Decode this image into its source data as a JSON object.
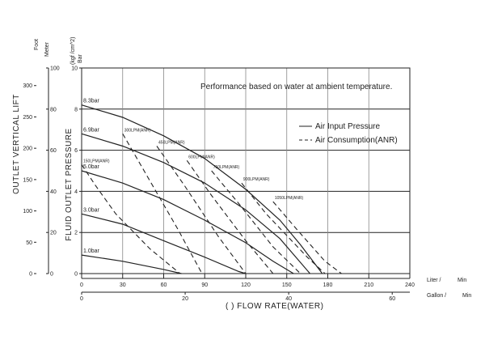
{
  "chart_data": {
    "type": "line",
    "note": "Performance based on water at ambient temperature.",
    "legend": {
      "position": "top-right",
      "entries": [
        {
          "label": "Air Input Pressure",
          "style": "solid"
        },
        {
          "label": "Air Consumption(ANR)",
          "style": "dashed"
        }
      ]
    },
    "xlabel": "(   ) FLOW RATE(WATER)",
    "x_unit_liter": "Liter /",
    "x_unit_liter_min": "Min",
    "x_unit_gallon": "Gallon /",
    "x_unit_gallon_min": "Min",
    "xlim": [
      0,
      240
    ],
    "x_ticks": [
      "0",
      "30",
      "60",
      "90",
      "120",
      "150",
      "180",
      "210",
      "240"
    ],
    "x2_ticks": [
      "0",
      "20",
      "40",
      "60"
    ],
    "ylabel_pressure": "FLUID OUTLET PRESSURE",
    "ylabel_lift": "OUTLET VERTICAL LIFT",
    "y_unit_kgf": "(kgf /cm^2)",
    "y_unit_bar": "Bar",
    "y_unit_foot": "Foot",
    "y_unit_meter": "Meter",
    "ylim": [
      0,
      10
    ],
    "y_ticks": [
      "0",
      "2",
      "4",
      "6",
      "8",
      "10"
    ],
    "meter_ticks": [
      "0",
      "20",
      "40",
      "60",
      "80",
      "100"
    ],
    "foot_ticks": [
      "0",
      "50",
      "100",
      "150",
      "200",
      "250",
      "300"
    ],
    "grid": true,
    "series": [
      {
        "name": "8.3bar",
        "style": "solid",
        "x": [
          0,
          30,
          60,
          90,
          120,
          145,
          160,
          176
        ],
        "y": [
          8.2,
          7.6,
          6.7,
          5.6,
          4.1,
          2.6,
          1.4,
          0
        ]
      },
      {
        "name": "6.9bar",
        "style": "solid",
        "x": [
          0,
          30,
          60,
          90,
          120,
          145,
          167
        ],
        "y": [
          6.8,
          6.2,
          5.4,
          4.4,
          3.1,
          1.7,
          0
        ]
      },
      {
        "name": "5.0bar",
        "style": "solid",
        "x": [
          0,
          30,
          60,
          90,
          120,
          140,
          155
        ],
        "y": [
          5.0,
          4.4,
          3.6,
          2.6,
          1.5,
          0.6,
          0
        ]
      },
      {
        "name": "3.0bar",
        "style": "solid",
        "x": [
          0,
          30,
          60,
          90,
          115,
          120
        ],
        "y": [
          2.9,
          2.4,
          1.6,
          0.8,
          0.1,
          0
        ]
      },
      {
        "name": "1.0bar",
        "style": "solid",
        "x": [
          0,
          30,
          60,
          73
        ],
        "y": [
          0.9,
          0.6,
          0.2,
          0
        ]
      },
      {
        "name": "150LPM(ANR)",
        "style": "dashed",
        "x": [
          0,
          10,
          25,
          50,
          72
        ],
        "y": [
          5.3,
          4.3,
          2.9,
          1.2,
          0
        ]
      },
      {
        "name": "300LPM(ANR)",
        "style": "dashed",
        "x": [
          30,
          50,
          70,
          88
        ],
        "y": [
          6.8,
          4.5,
          2.2,
          0
        ]
      },
      {
        "name": "450LPM(ANR)",
        "style": "dashed",
        "x": [
          55,
          75,
          100,
          120
        ],
        "y": [
          6.2,
          4.3,
          1.8,
          0
        ]
      },
      {
        "name": "600LPM(ANR)",
        "style": "dashed",
        "x": [
          77,
          95,
          120,
          140
        ],
        "y": [
          5.5,
          3.8,
          1.6,
          0
        ]
      },
      {
        "name": "750LPM(ANR)",
        "style": "dashed",
        "x": [
          95,
          115,
          140,
          160
        ],
        "y": [
          5.0,
          3.4,
          1.3,
          0
        ]
      },
      {
        "name": "900LPM(ANR)",
        "style": "dashed",
        "x": [
          117,
          135,
          165,
          178
        ],
        "y": [
          4.4,
          2.9,
          0.8,
          0
        ]
      },
      {
        "name": "1050LPM(ANR)",
        "style": "dashed",
        "x": [
          140,
          158,
          178,
          190
        ],
        "y": [
          3.5,
          2.1,
          0.6,
          0
        ]
      }
    ]
  }
}
